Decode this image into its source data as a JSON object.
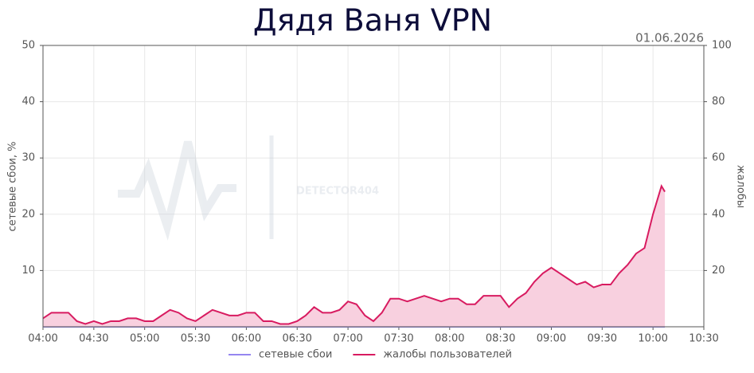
{
  "chart_data": {
    "type": "line",
    "title": "Дядя Ваня VPN",
    "subtitle": "01.06.2026",
    "watermark": "DETECTOR404",
    "ylabel": "сетевые сбои, %",
    "y2label": "жалобы",
    "x": [
      "04:00",
      "04:05",
      "04:10",
      "04:15",
      "04:20",
      "04:25",
      "04:30",
      "04:35",
      "04:40",
      "04:45",
      "04:50",
      "04:55",
      "05:00",
      "05:05",
      "05:10",
      "05:15",
      "05:20",
      "05:25",
      "05:30",
      "05:35",
      "05:40",
      "05:45",
      "05:50",
      "05:55",
      "06:00",
      "06:05",
      "06:10",
      "06:15",
      "06:20",
      "06:25",
      "06:30",
      "06:35",
      "06:40",
      "06:45",
      "06:50",
      "06:55",
      "07:00",
      "07:05",
      "07:10",
      "07:15",
      "07:20",
      "07:25",
      "07:30",
      "07:35",
      "07:40",
      "07:45",
      "07:50",
      "07:55",
      "08:00",
      "08:05",
      "08:10",
      "08:15",
      "08:20",
      "08:25",
      "08:30",
      "08:35",
      "08:40",
      "08:45",
      "08:50",
      "08:55",
      "09:00",
      "09:05",
      "09:10",
      "09:15",
      "09:20",
      "09:25",
      "09:30",
      "09:35",
      "09:40",
      "09:45",
      "09:50",
      "09:55",
      "10:00",
      "10:05",
      "10:07"
    ],
    "xlim": [
      "04:00",
      "10:30"
    ],
    "xticks": [
      "04:00",
      "04:30",
      "05:00",
      "05:30",
      "06:00",
      "06:30",
      "07:00",
      "07:30",
      "08:00",
      "08:30",
      "09:00",
      "09:30",
      "10:00",
      "10:30"
    ],
    "ylim": [
      0,
      50
    ],
    "yticks": [
      10,
      20,
      30,
      40,
      50
    ],
    "y2lim": [
      0,
      100
    ],
    "y2ticks": [
      20,
      40,
      60,
      80,
      100
    ],
    "grid": true,
    "legend": "bottom",
    "series": [
      {
        "name": "сетевые сбои",
        "color": "#9586f0",
        "axis": "y",
        "values": [
          0,
          0,
          0,
          0,
          0,
          0,
          0,
          0,
          0,
          0,
          0,
          0,
          0,
          0,
          0,
          0,
          0,
          0,
          0,
          0,
          0,
          0,
          0,
          0,
          0,
          0,
          0,
          0,
          0,
          0,
          0,
          0,
          0,
          0,
          0,
          0,
          0,
          0,
          0,
          0,
          0,
          0,
          0,
          0,
          0,
          0,
          0,
          0,
          0,
          0,
          0,
          0,
          0,
          0,
          0,
          0,
          0,
          0,
          0,
          0,
          0,
          0,
          0,
          0,
          0,
          0,
          0,
          0,
          0,
          0,
          0,
          0,
          0,
          0,
          0
        ]
      },
      {
        "name": "жалобы пользователей",
        "color": "#d81b60",
        "fill": "#f8d0df",
        "axis": "y2",
        "values": [
          3,
          5,
          5,
          5,
          2,
          1,
          2,
          1,
          2,
          2,
          3,
          3,
          2,
          2,
          4,
          6,
          5,
          3,
          2,
          4,
          6,
          5,
          4,
          4,
          5,
          5,
          2,
          2,
          1,
          1,
          2,
          4,
          7,
          5,
          5,
          6,
          9,
          8,
          4,
          2,
          5,
          10,
          10,
          9,
          10,
          11,
          10,
          9,
          10,
          10,
          8,
          8,
          11,
          11,
          11,
          7,
          10,
          12,
          16,
          19,
          21,
          19,
          17,
          15,
          16,
          14,
          15,
          15,
          19,
          22,
          26,
          28,
          40,
          50,
          48
        ]
      }
    ]
  }
}
